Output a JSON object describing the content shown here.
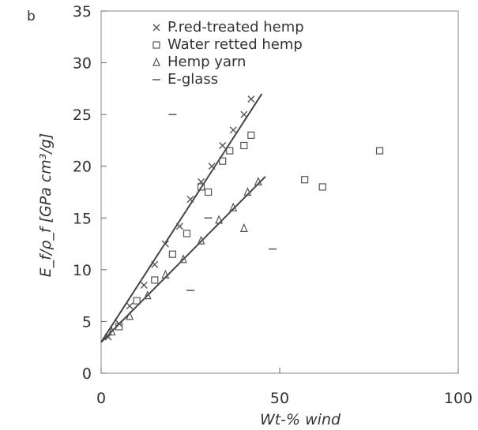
{
  "chart_data": {
    "type": "scatter",
    "panel_label": "b",
    "ylabel": "E_f/ρ_f [GPa cm³/g]",
    "xlabel": "Wt-% wind",
    "xlim": [
      0,
      100
    ],
    "ylim": [
      0,
      35
    ],
    "xticks": [
      0,
      50,
      100
    ],
    "xtick_labels": [
      "0",
      "50",
      "100"
    ],
    "yticks": [
      0,
      5,
      10,
      15,
      20,
      25,
      30,
      35
    ],
    "ytick_labels": [
      "0",
      "5",
      "10",
      "15",
      "20",
      "25",
      "30",
      "35"
    ],
    "legend_position": "top-left",
    "series": [
      {
        "name": "P.red-treated hemp",
        "marker": "x",
        "color": "#555555",
        "points": [
          [
            2,
            3.5
          ],
          [
            5,
            4.8
          ],
          [
            8,
            6.5
          ],
          [
            12,
            8.5
          ],
          [
            15,
            10.5
          ],
          [
            18,
            12.5
          ],
          [
            22,
            14.2
          ],
          [
            25,
            16.8
          ],
          [
            28,
            18.5
          ],
          [
            31,
            20.0
          ],
          [
            34,
            22.0
          ],
          [
            37,
            23.5
          ],
          [
            40,
            25.0
          ],
          [
            42,
            26.5
          ]
        ],
        "fit_line": [
          [
            0,
            3
          ],
          [
            45,
            27
          ]
        ]
      },
      {
        "name": "Water retted hemp",
        "marker": "square",
        "color": "#555555",
        "points": [
          [
            5,
            4.5
          ],
          [
            10,
            7.0
          ],
          [
            15,
            9.0
          ],
          [
            20,
            11.5
          ],
          [
            24,
            13.5
          ],
          [
            28,
            18.0
          ],
          [
            30,
            17.5
          ],
          [
            34,
            20.5
          ],
          [
            36,
            21.5
          ],
          [
            40,
            22.0
          ],
          [
            42,
            23.0
          ],
          [
            57,
            18.7
          ],
          [
            62,
            18.0
          ],
          [
            78,
            21.5
          ]
        ],
        "fit_line": []
      },
      {
        "name": "Hemp yarn",
        "marker": "triangle",
        "color": "#555555",
        "points": [
          [
            3,
            4.0
          ],
          [
            8,
            5.5
          ],
          [
            13,
            7.5
          ],
          [
            18,
            9.5
          ],
          [
            23,
            11.0
          ],
          [
            28,
            12.8
          ],
          [
            33,
            14.8
          ],
          [
            37,
            16.0
          ],
          [
            41,
            17.5
          ],
          [
            44,
            18.5
          ],
          [
            40,
            14.0
          ]
        ],
        "fit_line": [
          [
            0,
            3
          ],
          [
            46,
            19
          ]
        ]
      },
      {
        "name": "E-glass",
        "marker": "dash",
        "color": "#555555",
        "points": [
          [
            20,
            25.0
          ],
          [
            30,
            15.0
          ],
          [
            25,
            8.0
          ],
          [
            48,
            12.0
          ]
        ],
        "fit_line": []
      }
    ]
  }
}
